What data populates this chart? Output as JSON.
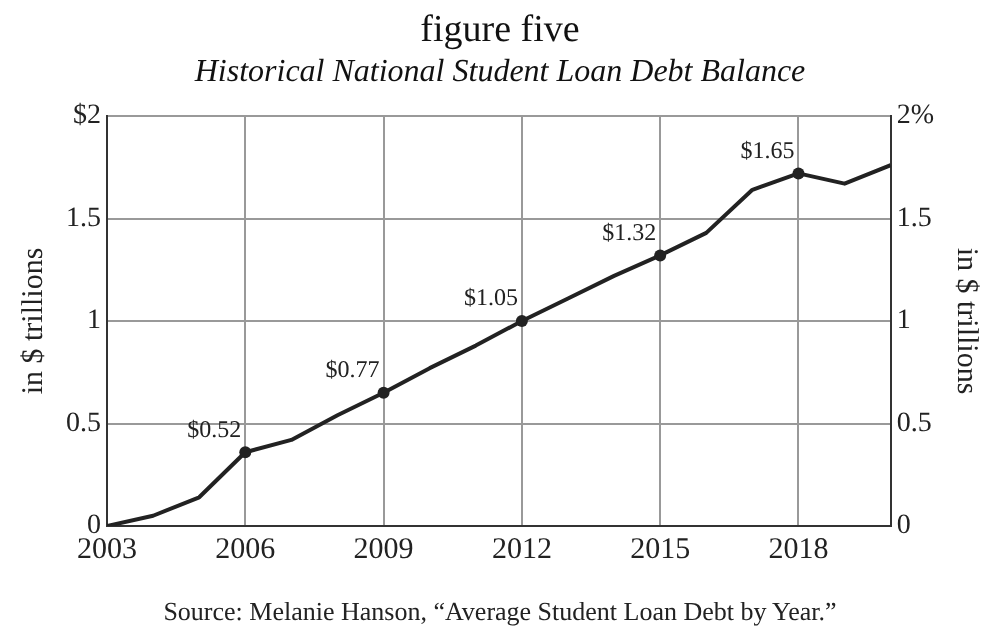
{
  "chart_data": {
    "type": "line",
    "title": "figure five",
    "subtitle": "Historical National Student Loan Debt Balance",
    "ylabel": "in $ trillions",
    "y2label": "in $ trillions",
    "x": [
      2003,
      2004,
      2005,
      2006,
      2007,
      2008,
      2009,
      2010,
      2011,
      2012,
      2013,
      2014,
      2015,
      2016,
      2017,
      2018,
      2019,
      2020
    ],
    "series": [
      {
        "color": "#222222",
        "values": [
          0,
          0.05,
          0.14,
          0.36,
          0.42,
          0.54,
          0.65,
          0.77,
          0.88,
          1.0,
          1.11,
          1.22,
          1.32,
          1.43,
          1.64,
          1.72,
          1.67,
          1.76
        ]
      }
    ],
    "xlim": [
      2003,
      2020
    ],
    "xticks": [
      2003,
      2006,
      2009,
      2012,
      2015,
      2018
    ],
    "ylim": [
      0,
      2
    ],
    "yticks": [
      0,
      0.5,
      1,
      1.5,
      {
        "value": 2,
        "label": "$2"
      }
    ],
    "y2lim": [
      0,
      2
    ],
    "y2ticks": [
      0,
      0.5,
      1,
      1.5,
      {
        "value": 2,
        "label": "2%"
      }
    ],
    "grid": true,
    "legend": false,
    "line_style": "solid",
    "annotations": [
      {
        "text": "$0.52",
        "x": 2006,
        "y": 0.36
      },
      {
        "text": "$0.77",
        "x": 2009,
        "y": 0.65
      },
      {
        "text": "$1.05",
        "x": 2012,
        "y": 1.0
      },
      {
        "text": "$1.32",
        "x": 2015,
        "y": 1.32
      },
      {
        "text": "$1.65",
        "x": 2018,
        "y": 1.72
      },
      "Source: Melanie Hanson, “Average Student Loan Debt by Year.”"
    ]
  }
}
